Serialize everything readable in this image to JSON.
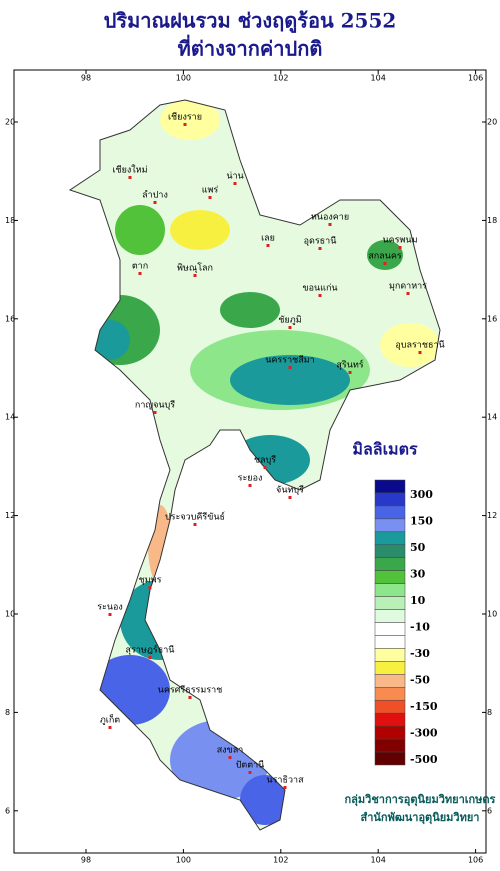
{
  "header": {
    "title": "ปริมาณฝนรวม ช่วงฤดูร้อน 2552",
    "subtitle": "ที่ต่างจากค่าปกติ"
  },
  "map": {
    "lon_ticks": [
      98,
      100,
      102,
      104,
      106
    ],
    "lat_ticks": [
      20,
      18,
      16,
      14,
      12,
      10,
      8,
      6
    ],
    "places": [
      "เชียงราย",
      "เชียงใหม่",
      "ลำปาง",
      "น่าน",
      "แพร่",
      "เลย",
      "หนองคาย",
      "อุดรธานี",
      "นครพนม",
      "สกลนคร",
      "มุกดาหาร",
      "ตาก",
      "พิษณุโลก",
      "ขอนแก่น",
      "ชัยภูมิ",
      "นครราชสีมา",
      "อุบลราชธานี",
      "สุรินทร์",
      "กาญจนบุรี",
      "ชลบุรี",
      "ระยอง",
      "จันทบุรี",
      "ประจวบคีรีขันธ์",
      "ชุมพร",
      "ระนอง",
      "สุราษฎร์ธานี",
      "ภูเก็ต",
      "นครศรีธรรมราช",
      "สงขลา",
      "ปัตตานี",
      "นราธิวาส"
    ]
  },
  "legend": {
    "title": "มิลลิเมตร",
    "colors": [
      "#0a0a8c",
      "#2838c8",
      "#4a64e8",
      "#7890f0",
      "#1a9a9a",
      "#2a8c6a",
      "#3aa84a",
      "#52c23a",
      "#8ee68a",
      "#b8f0b8",
      "#e0fae0",
      "#ffffff",
      "#ffffff",
      "#ffffa0",
      "#f8f040",
      "#f8b888",
      "#f88c50",
      "#f05028",
      "#e01010",
      "#b00000",
      "#800000",
      "#600000"
    ],
    "labels": [
      300,
      150,
      50,
      30,
      10,
      -10,
      -30,
      -50,
      -150,
      -300,
      -500
    ]
  },
  "credits": [
    "กลุ่มวิชาการอุตุนิยมวิทยาเกษตร",
    "สำนักพัฒนาอุตุนิยมวิทยา"
  ]
}
